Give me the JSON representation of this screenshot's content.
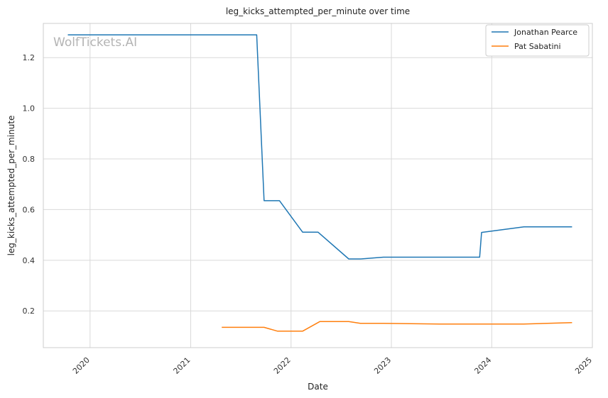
{
  "chart_data": {
    "type": "line",
    "title": "leg_kicks_attempted_per_minute over time",
    "xlabel": "Date",
    "ylabel": "leg_kicks_attempted_per_minute",
    "x_ticks": [
      "2020",
      "2021",
      "2022",
      "2023",
      "2024",
      "2025"
    ],
    "y_ticks": [
      "0.2",
      "0.4",
      "0.6",
      "0.8",
      "1.0",
      "1.2"
    ],
    "xlim": [
      "2019-07-15",
      "2025-01-01"
    ],
    "ylim": [
      0.055,
      1.335
    ],
    "grid": true,
    "legend_position": "top-right",
    "watermark": "WolfTickets.AI",
    "series": [
      {
        "name": "Jonathan Pearce",
        "color": "#1f77b4",
        "points": [
          {
            "x": "2019-10-12",
            "y": 1.29
          },
          {
            "x": "2021-08-29",
            "y": 1.29
          },
          {
            "x": "2021-09-25",
            "y": 0.635
          },
          {
            "x": "2021-11-20",
            "y": 0.635
          },
          {
            "x": "2022-02-12",
            "y": 0.511
          },
          {
            "x": "2022-04-09",
            "y": 0.511
          },
          {
            "x": "2022-07-30",
            "y": 0.405
          },
          {
            "x": "2022-09-10",
            "y": 0.405
          },
          {
            "x": "2022-12-03",
            "y": 0.412
          },
          {
            "x": "2023-11-18",
            "y": 0.412
          },
          {
            "x": "2023-11-25",
            "y": 0.51
          },
          {
            "x": "2024-04-27",
            "y": 0.532
          },
          {
            "x": "2024-10-19",
            "y": 0.532
          }
        ]
      },
      {
        "name": "Pat Sabatini",
        "color": "#ff7f0e",
        "points": [
          {
            "x": "2021-04-24",
            "y": 0.135
          },
          {
            "x": "2021-09-25",
            "y": 0.135
          },
          {
            "x": "2021-11-13",
            "y": 0.12
          },
          {
            "x": "2022-02-12",
            "y": 0.12
          },
          {
            "x": "2022-04-16",
            "y": 0.158
          },
          {
            "x": "2022-07-30",
            "y": 0.158
          },
          {
            "x": "2022-09-10",
            "y": 0.151
          },
          {
            "x": "2022-12-03",
            "y": 0.151
          },
          {
            "x": "2023-06-24",
            "y": 0.148
          },
          {
            "x": "2024-04-27",
            "y": 0.148
          },
          {
            "x": "2024-10-19",
            "y": 0.154
          }
        ]
      }
    ]
  }
}
